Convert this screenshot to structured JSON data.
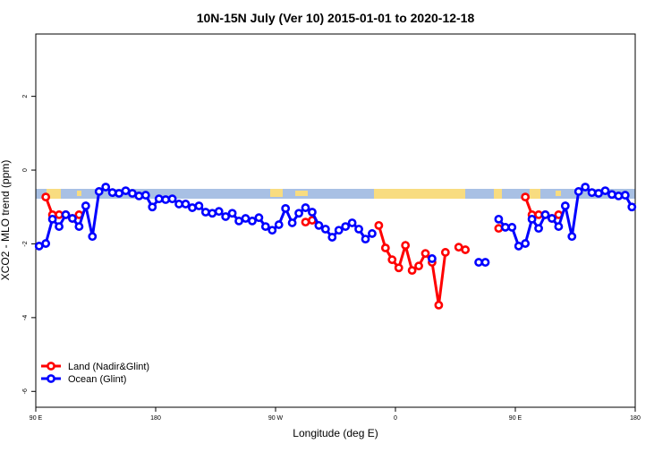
{
  "chart_data": {
    "type": "line",
    "title": "10N-15N July (Ver 10)   2015-01-01 to 2020-12-18",
    "x_label": "Longitude (deg E)",
    "y_label": "XCO2 - MLO trend (ppm)",
    "xlim": [
      90,
      540
    ],
    "ylim": [
      -6.43,
      3.69
    ],
    "xticks": [
      {
        "value": 90,
        "label": "90 E"
      },
      180,
      {
        "value": 270,
        "label": "90 W"
      },
      {
        "value": 360,
        "label": "0"
      },
      {
        "value": 450,
        "label": "90 E"
      },
      {
        "value": 540,
        "label": "180"
      }
    ],
    "yticks": [
      2,
      0,
      -2,
      -4,
      -6
    ],
    "legend": "bottom-left",
    "x": [
      92.5,
      97.5,
      102.5,
      107.5,
      112.5,
      117.5,
      122.5,
      127.5,
      132.5,
      137.5,
      142.5,
      147.5,
      152.5,
      157.5,
      162.5,
      167.5,
      172.5,
      177.5,
      182.5,
      187.5,
      192.5,
      197.5,
      202.5,
      207.5,
      212.5,
      217.5,
      222.5,
      227.5,
      232.5,
      237.5,
      242.5,
      247.5,
      252.5,
      257.5,
      262.5,
      267.5,
      272.5,
      277.5,
      282.5,
      287.5,
      292.5,
      297.5,
      302.5,
      307.5,
      312.5,
      317.5,
      322.5,
      327.5,
      332.5,
      337.5,
      342.5,
      347.5,
      352.5,
      357.5,
      362.5,
      367.5,
      372.5,
      377.5,
      382.5,
      387.5,
      392.5,
      397.5,
      402.5,
      407.5,
      412.5,
      417.5,
      422.5,
      427.5,
      432.5,
      437.5,
      442.5,
      447.5,
      452.5,
      457.5,
      462.5,
      467.5,
      472.5,
      477.5,
      482.5,
      487.5,
      492.5,
      497.5,
      502.5,
      507.5,
      512.5,
      517.5,
      522.5,
      527.5,
      532.5,
      537.5
    ],
    "series": [
      {
        "name": "Land (Nadir&Glint)",
        "color": "#ff0000",
        "values": [
          null,
          -0.73,
          -1.21,
          -1.21,
          -1.21,
          -1.31,
          -1.21,
          null,
          null,
          null,
          null,
          null,
          null,
          null,
          null,
          null,
          null,
          null,
          null,
          null,
          null,
          null,
          null,
          null,
          null,
          null,
          null,
          null,
          null,
          null,
          null,
          null,
          null,
          null,
          null,
          null,
          null,
          null,
          null,
          null,
          -1.41,
          -1.36,
          null,
          null,
          null,
          null,
          null,
          null,
          null,
          null,
          null,
          -1.5,
          -2.11,
          -2.43,
          -2.65,
          -2.04,
          -2.72,
          -2.6,
          -2.26,
          -2.5,
          -3.66,
          -2.23,
          null,
          -2.09,
          -2.16,
          null,
          null,
          null,
          null,
          -1.58,
          null,
          null,
          null,
          -0.73,
          -1.21,
          -1.21,
          -1.21,
          -1.31,
          -1.21,
          null,
          null,
          null,
          null,
          null,
          null,
          null,
          null,
          null,
          null,
          null
        ]
      },
      {
        "name": "Ocean (Glint)",
        "color": "#0000ff",
        "values": [
          -2.06,
          -1.99,
          -1.33,
          -1.53,
          -1.21,
          -1.31,
          -1.53,
          -0.97,
          -1.8,
          -0.58,
          -0.46,
          -0.61,
          -0.63,
          -0.56,
          -0.63,
          -0.7,
          -0.68,
          -1.0,
          -0.78,
          -0.8,
          -0.78,
          -0.92,
          -0.92,
          -1.02,
          -0.97,
          -1.14,
          -1.17,
          -1.12,
          -1.26,
          -1.17,
          -1.38,
          -1.31,
          -1.38,
          -1.29,
          -1.53,
          -1.63,
          -1.48,
          -1.04,
          -1.43,
          -1.17,
          -1.02,
          -1.14,
          -1.5,
          -1.6,
          -1.82,
          -1.63,
          -1.53,
          -1.43,
          -1.6,
          -1.87,
          -1.72,
          null,
          null,
          null,
          null,
          null,
          null,
          null,
          null,
          -2.4,
          null,
          null,
          null,
          null,
          null,
          null,
          -2.5,
          -2.5,
          null,
          -1.33,
          -1.55,
          -1.55,
          -2.06,
          -1.99,
          -1.33,
          -1.58,
          -1.21,
          -1.31,
          -1.53,
          -0.97,
          -1.8,
          -0.58,
          -0.46,
          -0.61,
          -0.63,
          -0.56,
          -0.66,
          -0.7,
          -0.68,
          -1.0
        ]
      }
    ]
  }
}
